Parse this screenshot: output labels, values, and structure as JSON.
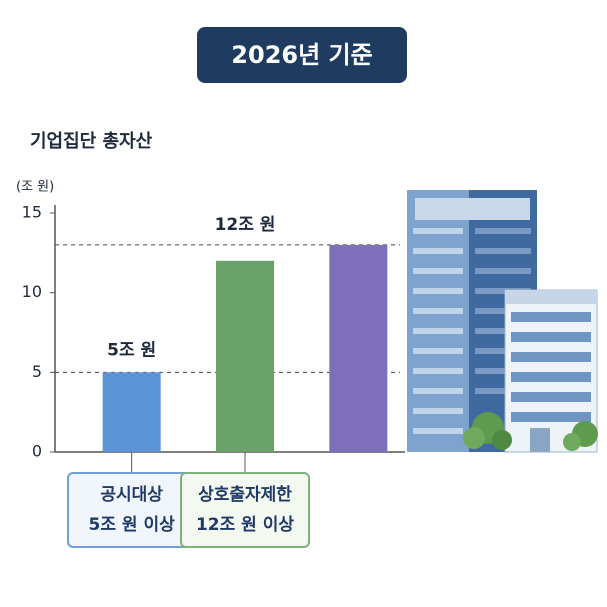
{
  "chart_data": {
    "type": "bar",
    "title": "2026년 기준",
    "subtitle": "기업집단 총자산",
    "y_label": "(조 원)",
    "categories": [
      "공시대상\n5조 원 이상",
      "상호출자제한\n12조 원 이상",
      null
    ],
    "values": [
      5,
      12,
      13
    ],
    "value_labels": [
      "5조 원",
      "12조 원",
      null
    ],
    "colors": [
      "#5b93d6",
      "#6aa36a",
      "#7d6fb9"
    ],
    "category_box_colors": [
      "#6f9fd6",
      "#7fb27a",
      null
    ],
    "ylim": [
      0,
      15
    ],
    "yticks": [
      0,
      5,
      10,
      15
    ],
    "reference_lines": [
      5,
      13
    ],
    "grid": false
  }
}
